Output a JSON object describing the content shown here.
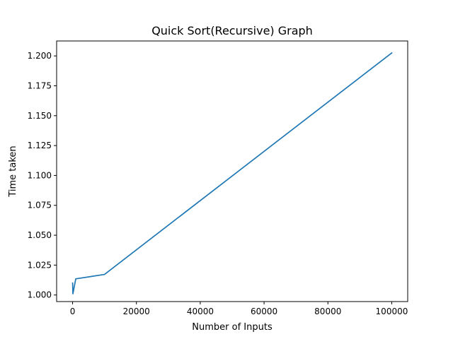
{
  "chart_data": {
    "type": "line",
    "title": "Quick Sort(Recursive) Graph",
    "xlabel": "Number of Inputs",
    "ylabel": "Time taken",
    "xlim": [
      -5000,
      105000
    ],
    "ylim": [
      0.9945,
      1.2125
    ],
    "xticks": [
      0,
      20000,
      40000,
      60000,
      80000,
      100000
    ],
    "xtick_labels": [
      "0",
      "20000",
      "40000",
      "60000",
      "80000",
      "100000"
    ],
    "yticks": [
      1.0,
      1.025,
      1.05,
      1.075,
      1.1,
      1.125,
      1.15,
      1.175,
      1.2
    ],
    "ytick_labels": [
      "1.000",
      "1.025",
      "1.050",
      "1.075",
      "1.100",
      "1.125",
      "1.150",
      "1.175",
      "1.200"
    ],
    "grid": false,
    "series": [
      {
        "color": "#1f77b4",
        "x": [
          10,
          100,
          1000,
          10000,
          100000
        ],
        "y": [
          1.01,
          1.001,
          1.0135,
          1.0172,
          1.2025
        ]
      }
    ]
  }
}
